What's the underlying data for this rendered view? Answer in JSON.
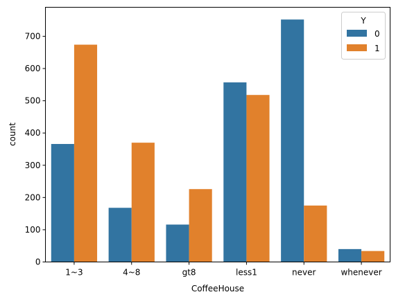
{
  "chart_data": {
    "type": "bar",
    "xlabel": "CoffeeHouse",
    "ylabel": "count",
    "categories": [
      "1~3",
      "4~8",
      "gt8",
      "less1",
      "never",
      "whenever"
    ],
    "series": [
      {
        "name": "0",
        "values": [
          366,
          168,
          116,
          557,
          752,
          40
        ]
      },
      {
        "name": "1",
        "values": [
          674,
          370,
          226,
          518,
          175,
          34
        ]
      }
    ],
    "ylim": [
      0,
      790
    ],
    "yticks": [
      0,
      100,
      200,
      300,
      400,
      500,
      600,
      700
    ],
    "legend": {
      "title": "Y",
      "placement": "top-right"
    },
    "grid": false
  },
  "colors": {
    "series_0": "#3274a1",
    "series_1": "#e1812c"
  }
}
